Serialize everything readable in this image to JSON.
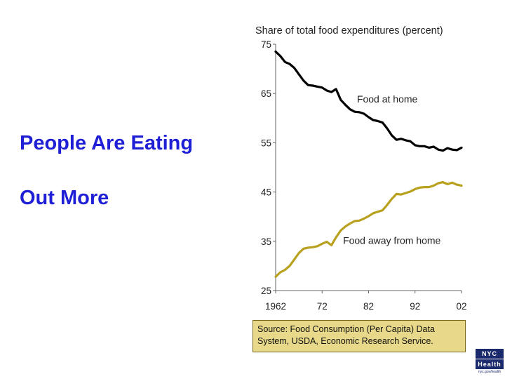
{
  "slide": {
    "title_line1": "People Are Eating",
    "title_line2": "Out More"
  },
  "chart_data": {
    "type": "line",
    "title": "Share of total food expenditures (percent)",
    "xlabel": "",
    "ylabel": "",
    "xlim": [
      1962,
      2002
    ],
    "ylim": [
      25,
      75
    ],
    "x_tick_values": [
      1962,
      1972,
      1982,
      1992,
      2002
    ],
    "x_tick_labels": [
      "1962",
      "72",
      "82",
      "92",
      "02"
    ],
    "y_tick_values": [
      75,
      65,
      55,
      45,
      35,
      25
    ],
    "y_tick_labels": [
      "75",
      "65",
      "55",
      "45",
      "35",
      "25"
    ],
    "colors": {
      "home": "#000000",
      "away": "#b8a11e",
      "axis": "#666666"
    },
    "series": [
      {
        "name": "Food at home",
        "x": [
          1962,
          1963,
          1964,
          1965,
          1966,
          1967,
          1968,
          1969,
          1970,
          1971,
          1972,
          1973,
          1974,
          1975,
          1976,
          1977,
          1978,
          1979,
          1980,
          1981,
          1982,
          1983,
          1984,
          1985,
          1986,
          1987,
          1988,
          1989,
          1990,
          1991,
          1992,
          1993,
          1994,
          1995,
          1996,
          1997,
          1998,
          1999,
          2000,
          2001,
          2002
        ],
        "values": [
          73.5,
          72.6,
          71.4,
          71.0,
          70.2,
          68.9,
          67.6,
          66.7,
          66.6,
          66.4,
          66.2,
          65.6,
          65.3,
          65.9,
          63.7,
          62.7,
          61.8,
          61.3,
          61.2,
          60.9,
          60.2,
          59.6,
          59.4,
          59.1,
          57.9,
          56.5,
          55.6,
          55.8,
          55.5,
          55.3,
          54.5,
          54.3,
          54.3,
          54.0,
          54.2,
          53.6,
          53.4,
          53.9,
          53.6,
          53.5,
          54.0
        ]
      },
      {
        "name": "Food away from home",
        "x": [
          1962,
          1963,
          1964,
          1965,
          1966,
          1967,
          1968,
          1969,
          1970,
          1971,
          1972,
          1973,
          1974,
          1975,
          1976,
          1977,
          1978,
          1979,
          1980,
          1981,
          1982,
          1983,
          1984,
          1985,
          1986,
          1987,
          1988,
          1989,
          1990,
          1991,
          1992,
          1993,
          1994,
          1995,
          1996,
          1997,
          1998,
          1999,
          2000,
          2001,
          2002
        ],
        "values": [
          27.8,
          28.7,
          29.2,
          30.0,
          31.3,
          32.6,
          33.5,
          33.7,
          33.8,
          34.0,
          34.5,
          34.9,
          34.2,
          35.8,
          37.2,
          38.0,
          38.6,
          39.1,
          39.2,
          39.6,
          40.1,
          40.7,
          41.0,
          41.3,
          42.4,
          43.6,
          44.6,
          44.5,
          44.8,
          45.1,
          45.6,
          45.9,
          46.0,
          46.0,
          46.3,
          46.8,
          47.0,
          46.6,
          46.9,
          46.5,
          46.3
        ]
      }
    ],
    "annotations": [
      {
        "text": "Food at home",
        "x": 1979.5,
        "y": 63.2
      },
      {
        "text": "Food away from home",
        "x": 1976.5,
        "y": 34.5
      }
    ]
  },
  "source": {
    "line1": "Source: Food Consumption (Per Capita) Data",
    "line2": "System, USDA, Economic Research Service."
  },
  "logo": {
    "line1": "NYC",
    "line2": "Health",
    "line3": "nyc.gov/health"
  }
}
